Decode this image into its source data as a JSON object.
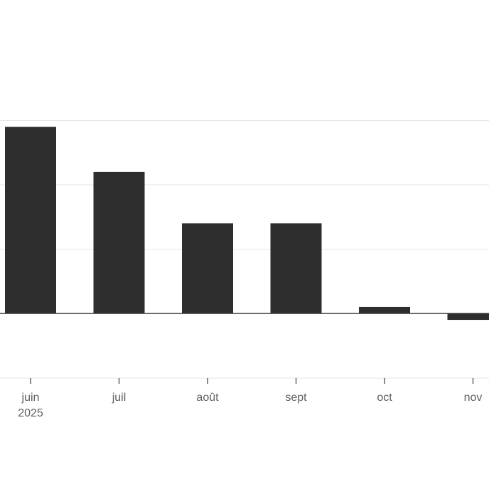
{
  "chart_data": {
    "type": "bar",
    "categories": [
      "juin",
      "juil",
      "août",
      "sept",
      "oct",
      "nov"
    ],
    "year_labels": [
      "2025",
      "",
      "",
      "",
      "",
      ""
    ],
    "values": [
      2.9,
      2.2,
      1.4,
      1.4,
      0.1,
      -0.1
    ],
    "ylim": [
      -1,
      4
    ],
    "grid": true,
    "bar_color": "#2e2e2e",
    "grid_color": "#e6e6e6",
    "zero_line_color": "#3a3a3a"
  }
}
